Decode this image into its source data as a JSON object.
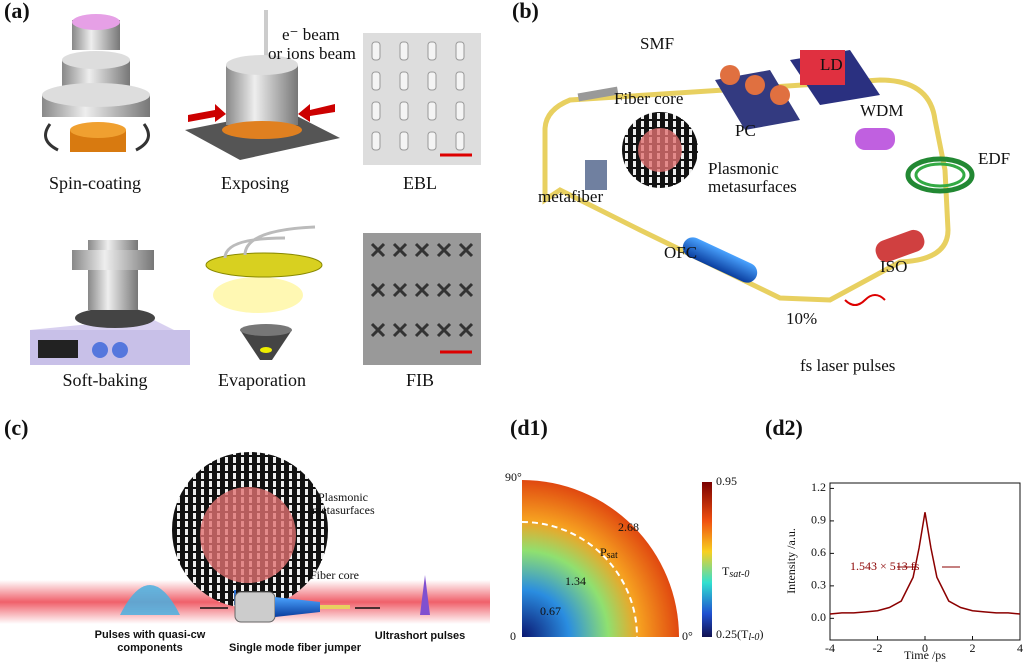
{
  "panel_a": {
    "label": "(a)",
    "beam_line1": "e⁻ beam",
    "beam_line2": "or ions beam",
    "steps": [
      "Spin-coating",
      "Exposing",
      "EBL",
      "Soft-baking",
      "Evaporation",
      "FIB"
    ]
  },
  "panel_b": {
    "label": "(b)",
    "smf": "SMF",
    "ld": "LD",
    "pc": "PC",
    "wdm": "WDM",
    "edf": "EDF",
    "fiber_core": "Fiber core",
    "plasmonic_line1": "Plasmonic",
    "plasmonic_line2": "metasurfaces",
    "metafiber": "metafiber",
    "ofc": "OFC",
    "iso": "ISO",
    "ratio": "10%",
    "output": "fs laser pulses"
  },
  "panel_c": {
    "label": "(c)",
    "plasmonic_line1": "Plasmonic",
    "plasmonic_line2": "metasurfaces",
    "fiber_core": "Fiber core",
    "input_line1": "Pulses with quasi-cw",
    "input_line2": "components",
    "jumper": "Single mode fiber jumper",
    "output": "Ultrashort pulses"
  },
  "panel_d1": {
    "label": "(d1)",
    "angle_top": "90°",
    "angle_right": "0°",
    "radial_labels": [
      "0",
      "0.67",
      "1.34",
      "2.68"
    ],
    "psat": "P",
    "psat_sub": "sat",
    "colorbar_top": "0.95",
    "colorbar_bottom": "0.25(T",
    "colorbar_bottom_sub": "l-0",
    "colorbar_bottom_end": ")",
    "tsat": "T",
    "tsat_sub": "sat-0"
  },
  "panel_d2": {
    "label": "(d2)",
    "type": "line",
    "xlabel": "Time /ps",
    "ylabel": "Intensity /a.u.",
    "annotation": "1.543 × 513 fs",
    "color": "#8b0000",
    "xlim": [
      -4,
      4
    ],
    "ylim": [
      -0.2,
      1.25
    ],
    "xticks": [
      -4,
      -2,
      0,
      2,
      4
    ],
    "yticks": [
      {
        "value": 0,
        "label": "0.0"
      },
      {
        "value": 0.3,
        "label": "0.3"
      },
      {
        "value": 0.6,
        "label": "0.6"
      },
      {
        "value": 0.9,
        "label": "0.9"
      },
      {
        "value": 1.2,
        "label": "1.2"
      }
    ],
    "x": [
      -4,
      -3.5,
      -3,
      -2.5,
      -2,
      -1.5,
      -1,
      -0.5,
      -0.25,
      0,
      0.25,
      0.5,
      1,
      1.5,
      2,
      2.5,
      3,
      3.5,
      4
    ],
    "values": [
      0.04,
      0.05,
      0.05,
      0.06,
      0.07,
      0.1,
      0.16,
      0.38,
      0.65,
      0.98,
      0.65,
      0.38,
      0.16,
      0.1,
      0.07,
      0.06,
      0.05,
      0.05,
      0.04
    ]
  }
}
